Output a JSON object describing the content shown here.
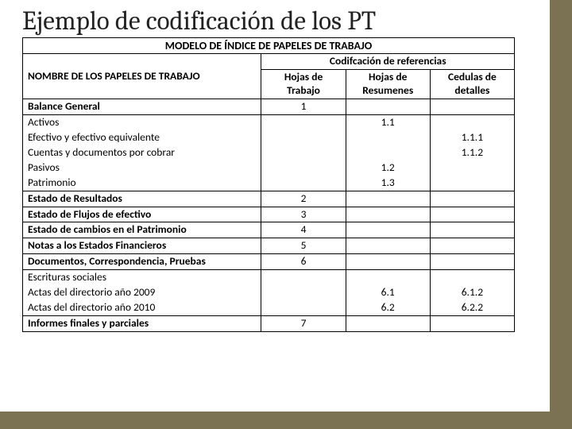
{
  "slide_title": "Ejemplo de codificación de los PT",
  "table": {
    "title": "MODELO DE ÍNDICE DE PAPELES DE TRABAJO",
    "name_header": "NOMBRE DE LOS PAPELES DE TRABAJO",
    "cod_header": "Codifcación de referencias",
    "col_headers": [
      "Hojas de Trabajo",
      "Hojas de Resumenes",
      "Cedulas de detalles"
    ],
    "sections": [
      {
        "header": {
          "name": "Balance General",
          "vals": [
            "1",
            "",
            ""
          ]
        },
        "rows": [
          {
            "name": "Activos",
            "vals": [
              "",
              "1.1",
              ""
            ]
          },
          {
            "name": "Efectivo y efectivo equivalente",
            "vals": [
              "",
              "",
              "1.1.1"
            ]
          },
          {
            "name": "Cuentas y documentos por cobrar",
            "vals": [
              "",
              "",
              "1.1.2"
            ]
          },
          {
            "name": "Pasivos",
            "vals": [
              "",
              "1.2",
              ""
            ]
          },
          {
            "name": "Patrimonio",
            "vals": [
              "",
              "1.3",
              ""
            ]
          }
        ]
      },
      {
        "header": {
          "name": "Estado de Resultados",
          "vals": [
            "2",
            "",
            ""
          ]
        },
        "rows": []
      },
      {
        "header": {
          "name": "Estado de Flujos de efectivo",
          "vals": [
            "3",
            "",
            ""
          ]
        },
        "rows": []
      },
      {
        "header": {
          "name": "Estado de cambios en el Patrimonio",
          "vals": [
            "4",
            "",
            ""
          ]
        },
        "rows": []
      },
      {
        "header": {
          "name": "Notas a los Estados Financieros",
          "vals": [
            "5",
            "",
            ""
          ]
        },
        "rows": []
      },
      {
        "header": {
          "name": "Documentos, Correspondencia, Pruebas",
          "vals": [
            "6",
            "",
            ""
          ]
        },
        "rows": [
          {
            "name": "Escrituras sociales",
            "vals": [
              "",
              "",
              ""
            ]
          },
          {
            "name": "Actas del directorio año 2009",
            "vals": [
              "",
              "6.1",
              "6.1.2"
            ]
          },
          {
            "name": "Actas del directorio año 2010",
            "vals": [
              "",
              "6.2",
              "6.2.2"
            ]
          }
        ]
      },
      {
        "header": {
          "name": "Informes finales y parciales",
          "vals": [
            "7",
            "",
            ""
          ]
        },
        "rows": []
      }
    ]
  },
  "colors": {
    "accent": "#7a7252",
    "background": "#ffffff",
    "text": "#000000"
  }
}
